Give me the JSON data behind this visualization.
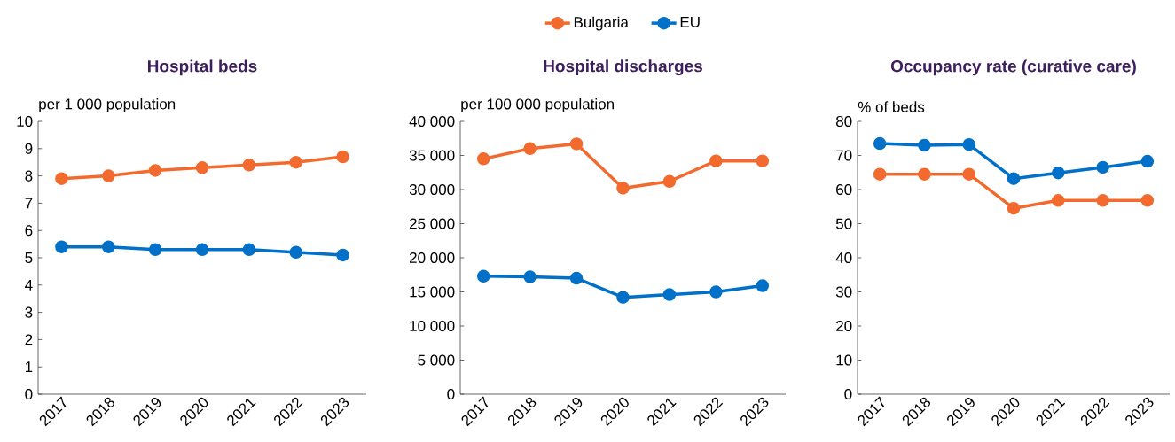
{
  "chart_data": [
    {
      "type": "line",
      "title": "Hospital beds",
      "ylabel": "per 1 000 population",
      "categories": [
        "2017",
        "2018",
        "2019",
        "2020",
        "2021",
        "2022",
        "2023"
      ],
      "series": [
        {
          "color": "#f26a2e",
          "values": [
            7.9,
            8.0,
            8.2,
            8.3,
            8.4,
            8.5,
            8.7
          ]
        },
        {
          "color": "#0070c8",
          "values": [
            5.4,
            5.4,
            5.3,
            5.3,
            5.3,
            5.2,
            5.1
          ]
        }
      ],
      "ylim": [
        0,
        10
      ],
      "yticks": [
        0,
        1,
        2,
        3,
        4,
        5,
        6,
        7,
        8,
        9,
        10
      ],
      "marker": "circle",
      "line_style": "solid"
    },
    {
      "type": "line",
      "title": "Hospital discharges",
      "ylabel": "per 100 000 population",
      "categories": [
        "2017",
        "2018",
        "2019",
        "2020",
        "2021",
        "2022",
        "2023"
      ],
      "series": [
        {
          "name": "Bulgaria",
          "color": "#f26a2e",
          "values": [
            34500,
            36000,
            36700,
            30200,
            31200,
            34200,
            34200
          ]
        },
        {
          "name": "EU",
          "color": "#0070c8",
          "values": [
            17300,
            17200,
            17000,
            14200,
            14600,
            15000,
            15900
          ]
        }
      ],
      "ylim": [
        0,
        40000
      ],
      "yticks": [
        0,
        {
          "value": 5000,
          "label": "5 000"
        },
        {
          "value": 10000,
          "label": "10 000"
        },
        {
          "value": 15000,
          "label": "15 000"
        },
        {
          "value": 20000,
          "label": "20 000"
        },
        {
          "value": 25000,
          "label": "25 000"
        },
        {
          "value": 30000,
          "label": "30 000"
        },
        {
          "value": 35000,
          "label": "35 000"
        },
        {
          "value": 40000,
          "label": "40 000"
        }
      ],
      "marker": "circle",
      "line_style": "solid",
      "legend": "top"
    },
    {
      "type": "line",
      "title": "Occupancy rate (curative care)",
      "ylabel": "% of beds",
      "categories": [
        "2017",
        "2018",
        "2019",
        "2020",
        "2021",
        "2022",
        "2023"
      ],
      "series": [
        {
          "color": "#f26a2e",
          "values": [
            64.5,
            64.5,
            64.5,
            54.5,
            56.8,
            56.8,
            56.8
          ]
        },
        {
          "color": "#0070c8",
          "values": [
            73.5,
            73.0,
            73.2,
            63.2,
            64.9,
            66.5,
            68.3
          ]
        }
      ],
      "ylim": [
        0,
        80
      ],
      "yticks": [
        0,
        10,
        20,
        30,
        40,
        50,
        60,
        70,
        80
      ],
      "marker": "circle",
      "line_style": "solid"
    }
  ]
}
